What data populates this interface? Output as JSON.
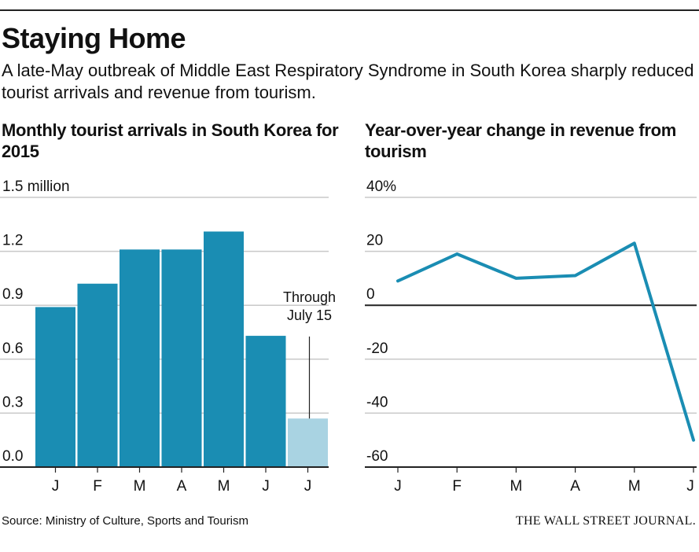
{
  "header": {
    "title": "Staying Home",
    "subtitle": "A late-May outbreak of Middle East Respiratory Syndrome in South Korea sharply reduced tourist arrivals and revenue from tourism."
  },
  "footer": {
    "source": "Source: Ministry of Culture, Sports and Tourism",
    "publisher": "THE WALL STREET JOURNAL."
  },
  "colors": {
    "bar": "#1a8db3",
    "bar_partial": "#a9d3e2",
    "line": "#1a8db3",
    "grid": "#c8c8c8",
    "axis": "#222222"
  },
  "chart_data": [
    {
      "type": "bar",
      "title": "Monthly tourist arrivals in South Korea for 2015",
      "categories": [
        "J",
        "F",
        "M",
        "A",
        "M",
        "J",
        "J"
      ],
      "values": [
        0.89,
        1.02,
        1.21,
        1.21,
        1.31,
        0.73,
        0.27
      ],
      "partial": [
        false,
        false,
        false,
        false,
        false,
        false,
        true
      ],
      "ylim": [
        0,
        1.5
      ],
      "yticks": [
        0,
        0.3,
        0.6,
        0.9,
        1.2,
        1.5
      ],
      "ytick_labels": [
        "0.0",
        "0.3",
        "0.6",
        "0.9",
        "1.2",
        "1.5 million"
      ],
      "annotation": {
        "text": [
          "Through",
          "July 15"
        ],
        "category_index": 6
      },
      "grid": true
    },
    {
      "type": "line",
      "title": "Year-over-year change in revenue from tourism",
      "categories": [
        "J",
        "F",
        "M",
        "A",
        "M",
        "J"
      ],
      "values": [
        9,
        19,
        10,
        11,
        23,
        -50
      ],
      "ylim": [
        -60,
        40
      ],
      "yticks": [
        -60,
        -40,
        -20,
        0,
        20,
        40
      ],
      "ytick_labels": [
        "-60",
        "-40",
        "-20",
        "0",
        "20",
        "40%"
      ],
      "grid": true
    }
  ]
}
